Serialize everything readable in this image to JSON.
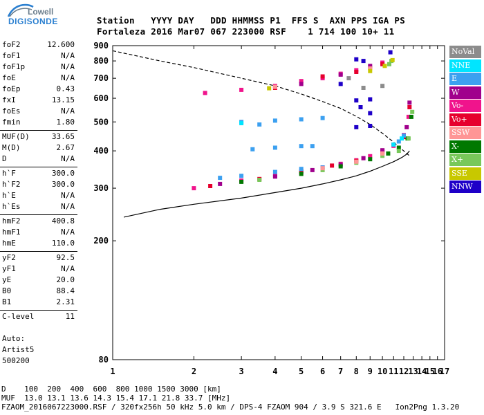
{
  "logo": {
    "line1": "Lowell",
    "line2": "DIGISONDE",
    "color_top": "#6a7d8c",
    "color_bottom": "#2a7fd0"
  },
  "header": {
    "labels": "Station   YYYY DAY   DDD HHMMSS P1  FFS S  AXN PPS IGA PS",
    "values": "Fortaleza 2016 Mar07 067 223000 RSF    1 714 100 10+ 11"
  },
  "params": [
    {
      "label": "foF2",
      "value": "12.600"
    },
    {
      "label": "foF1",
      "value": "N/A"
    },
    {
      "label": "foF1p",
      "value": "N/A"
    },
    {
      "label": "foE",
      "value": "N/A"
    },
    {
      "label": "foEp",
      "value": "0.43"
    },
    {
      "label": "fxI",
      "value": "13.15"
    },
    {
      "label": "foEs",
      "value": "N/A"
    },
    {
      "label": "fmin",
      "value": "1.80"
    },
    {
      "label": "MUF(D)",
      "value": "33.65"
    },
    {
      "label": "M(D)",
      "value": "2.67"
    },
    {
      "label": "D",
      "value": "N/A"
    },
    {
      "label": "h`F",
      "value": "300.0"
    },
    {
      "label": "h`F2",
      "value": "300.0"
    },
    {
      "label": "h`E",
      "value": "N/A"
    },
    {
      "label": "h`Es",
      "value": "N/A"
    },
    {
      "label": "hmF2",
      "value": "400.8"
    },
    {
      "label": "hmF1",
      "value": "N/A"
    },
    {
      "label": "hmE",
      "value": "110.0"
    },
    {
      "label": "yF2",
      "value": "92.5"
    },
    {
      "label": "yF1",
      "value": "N/A"
    },
    {
      "label": "yE",
      "value": "20.0"
    },
    {
      "label": "B0",
      "value": "88.4"
    },
    {
      "label": "B1",
      "value": "2.31"
    },
    {
      "label": "C-level",
      "value": "11"
    }
  ],
  "auto": {
    "line1": "Auto:",
    "line2": "Artist5",
    "line3": "500200"
  },
  "footer": {
    "line1": "D    100  200  400  600  800 1000 1500 3000 [km]",
    "line2": "MUF  13.0 13.1 13.6 14.3 15.4 17.1 21.8 33.7 [MHz]",
    "line3": "FZAOM_2016067223000.RSF / 320fx256h 50 kHz 5.0 km / DPS-4 FZAOM 904 / 3.9 S 321.6 E   Ion2Png 1.3.20"
  },
  "legend": [
    {
      "label": "NoVal",
      "color": "#8c8c8c"
    },
    {
      "label": "NNE",
      "color": "#00e5ff"
    },
    {
      "label": "E",
      "color": "#3ca0f0"
    },
    {
      "label": "W",
      "color": "#a0008c"
    },
    {
      "label": "Vo-",
      "color": "#f0148c"
    },
    {
      "label": "Vo+",
      "color": "#e6002d"
    },
    {
      "label": "SSW",
      "color": "#ff9696"
    },
    {
      "label": "X-",
      "color": "#007800"
    },
    {
      "label": "X+",
      "color": "#78c85a"
    },
    {
      "label": "SSE",
      "color": "#c8c800"
    },
    {
      "label": "NNW",
      "color": "#1e00c8"
    }
  ],
  "chart_data": {
    "type": "scatter",
    "xlim": [
      1,
      17
    ],
    "ylim": [
      80,
      900
    ],
    "x_ticks": [
      "1",
      "2",
      "3",
      "4",
      "5",
      "6",
      "7",
      "8",
      "9",
      "10",
      "11",
      "12",
      "13",
      "14",
      "15",
      "16",
      "17"
    ],
    "y_ticks": [
      "80",
      "200",
      "300",
      "400",
      "500",
      "600",
      "700",
      "800",
      "900"
    ],
    "y_scale": "log",
    "x_scale": "log",
    "grid": false,
    "legend_position": "right",
    "profile_line": [
      [
        1.1,
        240
      ],
      [
        1.5,
        255
      ],
      [
        2,
        265
      ],
      [
        3,
        278
      ],
      [
        4,
        290
      ],
      [
        5,
        300
      ],
      [
        6,
        310
      ],
      [
        7,
        320
      ],
      [
        8,
        330
      ],
      [
        9,
        342
      ],
      [
        10,
        355
      ],
      [
        11,
        368
      ],
      [
        11.8,
        380
      ],
      [
        12.3,
        390
      ],
      [
        12.6,
        400
      ]
    ],
    "muf_dashed": [
      [
        1,
        865
      ],
      [
        1.5,
        800
      ],
      [
        2,
        760
      ],
      [
        3,
        700
      ],
      [
        4,
        660
      ],
      [
        5,
        620
      ],
      [
        6,
        585
      ],
      [
        7,
        555
      ],
      [
        8,
        522
      ],
      [
        9,
        490
      ],
      [
        10,
        458
      ],
      [
        11,
        428
      ],
      [
        11.8,
        405
      ],
      [
        12.4,
        390
      ],
      [
        12.6,
        385
      ]
    ],
    "series": [
      {
        "name": "Vo-",
        "color": "#f0148c",
        "points": [
          [
            2,
            300
          ],
          [
            3,
            318
          ],
          [
            4,
            330
          ],
          [
            5,
            340
          ],
          [
            6,
            352
          ],
          [
            7,
            362
          ],
          [
            8,
            372
          ],
          [
            9,
            384
          ],
          [
            10,
            398
          ],
          [
            11,
            416
          ],
          [
            12,
            452
          ],
          [
            12.5,
            520
          ],
          [
            2.2,
            625
          ],
          [
            3,
            640
          ],
          [
            4,
            660
          ],
          [
            5,
            685
          ],
          [
            6,
            700
          ],
          [
            7,
            725
          ],
          [
            8,
            745
          ],
          [
            9,
            760
          ],
          [
            10,
            790
          ]
        ]
      },
      {
        "name": "Vo+",
        "color": "#e6002d",
        "points": [
          [
            2.3,
            305
          ],
          [
            3.5,
            322
          ],
          [
            5,
            342
          ],
          [
            6.5,
            357
          ],
          [
            8,
            370
          ],
          [
            10,
            395
          ],
          [
            12,
            445
          ],
          [
            12.6,
            560
          ],
          [
            10,
            780
          ],
          [
            4,
            650
          ],
          [
            6,
            710
          ],
          [
            8,
            735
          ]
        ]
      },
      {
        "name": "W",
        "color": "#a0008c",
        "points": [
          [
            2.5,
            310
          ],
          [
            4,
            328
          ],
          [
            5.5,
            345
          ],
          [
            7,
            360
          ],
          [
            8.5,
            378
          ],
          [
            10,
            402
          ],
          [
            11,
            420
          ],
          [
            12.3,
            480
          ],
          [
            12.6,
            580
          ],
          [
            5,
            670
          ],
          [
            7,
            720
          ],
          [
            9,
            770
          ]
        ]
      },
      {
        "name": "X-",
        "color": "#007800",
        "points": [
          [
            3,
            315
          ],
          [
            5,
            335
          ],
          [
            7,
            355
          ],
          [
            9,
            375
          ],
          [
            10.5,
            392
          ],
          [
            11.5,
            410
          ],
          [
            12.4,
            440
          ],
          [
            12.8,
            520
          ]
        ]
      },
      {
        "name": "X+",
        "color": "#78c85a",
        "points": [
          [
            3.5,
            320
          ],
          [
            6,
            345
          ],
          [
            8,
            365
          ],
          [
            10,
            385
          ],
          [
            11.5,
            400
          ],
          [
            12.5,
            440
          ],
          [
            12.9,
            540
          ],
          [
            10.6,
            780
          ],
          [
            10.8,
            800
          ]
        ]
      },
      {
        "name": "E",
        "color": "#3ca0f0",
        "points": [
          [
            2.5,
            325
          ],
          [
            3,
            330
          ],
          [
            4,
            340
          ],
          [
            5,
            348
          ],
          [
            6,
            352
          ],
          [
            3.3,
            405
          ],
          [
            4,
            410
          ],
          [
            5,
            415
          ],
          [
            5.5,
            415
          ],
          [
            3,
            500
          ],
          [
            4,
            505
          ],
          [
            5,
            510
          ],
          [
            6,
            515
          ],
          [
            11.5,
            430
          ],
          [
            12,
            450
          ],
          [
            3.5,
            490
          ]
        ]
      },
      {
        "name": "NNE",
        "color": "#00e5ff",
        "points": [
          [
            11,
            420
          ],
          [
            11.8,
            440
          ],
          [
            3,
            495
          ]
        ]
      },
      {
        "name": "SSW",
        "color": "#ff9696",
        "points": [
          [
            6,
            350
          ],
          [
            8,
            368
          ],
          [
            10,
            392
          ],
          [
            4,
            655
          ],
          [
            9,
            755
          ]
        ]
      },
      {
        "name": "SSE",
        "color": "#c8c800",
        "points": [
          [
            9,
            740
          ],
          [
            10.2,
            770
          ],
          [
            10.9,
            805
          ],
          [
            3.8,
            648
          ]
        ]
      },
      {
        "name": "NNW",
        "color": "#1e00c8",
        "points": [
          [
            7,
            670
          ],
          [
            8,
            810
          ],
          [
            8.5,
            800
          ],
          [
            8,
            590
          ],
          [
            9,
            595
          ],
          [
            8,
            480
          ],
          [
            9,
            485
          ],
          [
            9,
            535
          ],
          [
            8.3,
            560
          ],
          [
            10.7,
            855
          ]
        ]
      },
      {
        "name": "NoVal",
        "color": "#8c8c8c",
        "points": [
          [
            8.5,
            650
          ],
          [
            10,
            660
          ],
          [
            7.5,
            700
          ]
        ]
      }
    ]
  }
}
